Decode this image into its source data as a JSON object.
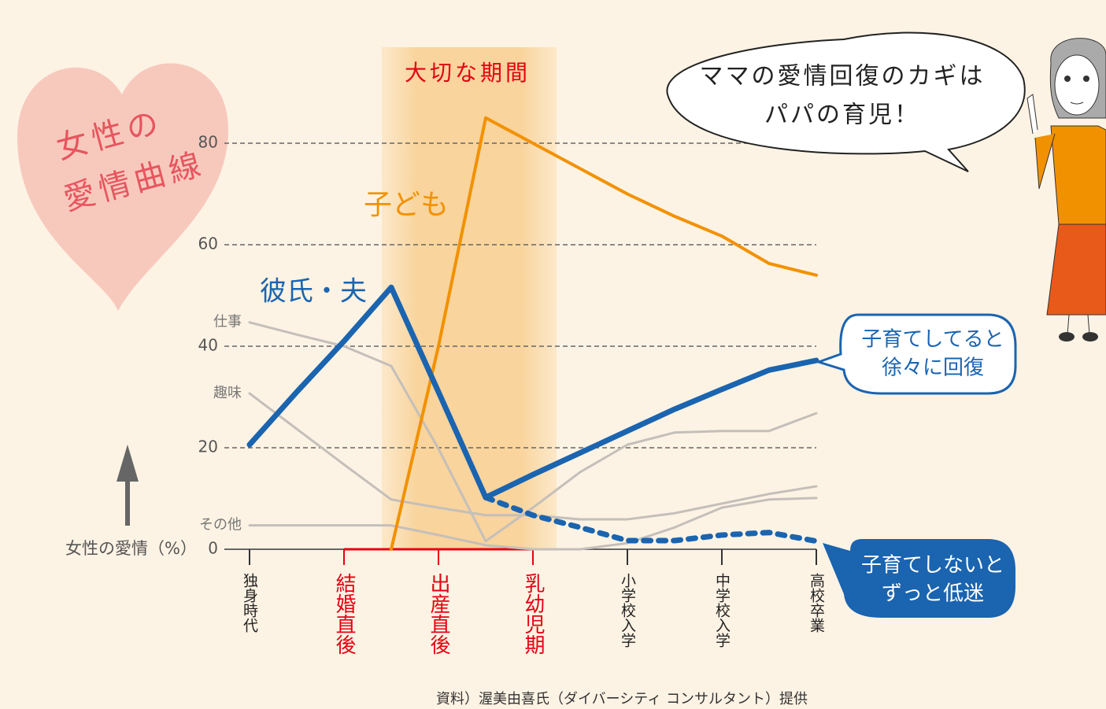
{
  "chart_data": {
    "type": "line",
    "title_lines": [
      "女性の",
      "愛情曲線"
    ],
    "y_label": "女性の愛情（%）",
    "period_label": "大切な期間",
    "categories": [
      "独身時代",
      null,
      "結婚直後",
      null,
      "出産直後",
      null,
      "乳幼児期",
      null,
      "小学校入学",
      null,
      "中学校入学",
      null,
      "高校卒業"
    ],
    "highlight": {
      "from": 2,
      "to": 6,
      "color": "#e60012"
    },
    "ylim": [
      0,
      100
    ],
    "yticks": [
      0,
      20,
      40,
      60,
      80
    ],
    "grid": true,
    "series": [
      {
        "name": "仕事",
        "color": "#c4bfba",
        "values": [
          44.7,
          42.3,
          40,
          36.1,
          19.8,
          1.6,
          8.2,
          15.2,
          20.6,
          23,
          23.3,
          23.3,
          26.8
        ]
      },
      {
        "name": "趣味",
        "color": "#c4bfba",
        "values": [
          30.7,
          23.7,
          16.7,
          9.8,
          8.2,
          6.7,
          6.7,
          5.9,
          5.9,
          7.1,
          9,
          10.9,
          12.4
        ]
      },
      {
        "name": "その他",
        "color": "#c4bfba",
        "values": [
          4.7,
          4.7,
          4.7,
          4.7,
          2.8,
          0.8,
          0,
          0,
          1.2,
          4.3,
          8.2,
          9.8,
          10.1
        ]
      },
      {
        "name": "子ども",
        "color": "#f29100",
        "values": [
          null,
          null,
          null,
          0,
          40,
          85,
          80,
          75,
          70,
          65.6,
          61.7,
          56.3,
          54
        ]
      },
      {
        "name": "彼氏・夫",
        "color": "#1a64b0",
        "values": [
          20.6,
          31,
          41,
          51.6,
          31,
          10.2,
          14.7,
          19,
          23.3,
          27.6,
          31.5,
          35.3,
          37.2
        ]
      },
      {
        "color": "#1a64b0",
        "dashed": true,
        "values": [
          null,
          null,
          null,
          null,
          null,
          10.2,
          6.7,
          4.3,
          1.7,
          1.7,
          2.8,
          3.3,
          1.6
        ]
      }
    ],
    "callouts": [
      [
        "ママの愛情回復のカギは",
        "パパの育児！"
      ],
      [
        "子育てしてると",
        "徐々に回復"
      ],
      [
        "子育てしないと",
        "ずっと低迷"
      ]
    ],
    "source": "資料）渥美由喜氏（ダイバーシティ コンサルタント）提供"
  }
}
